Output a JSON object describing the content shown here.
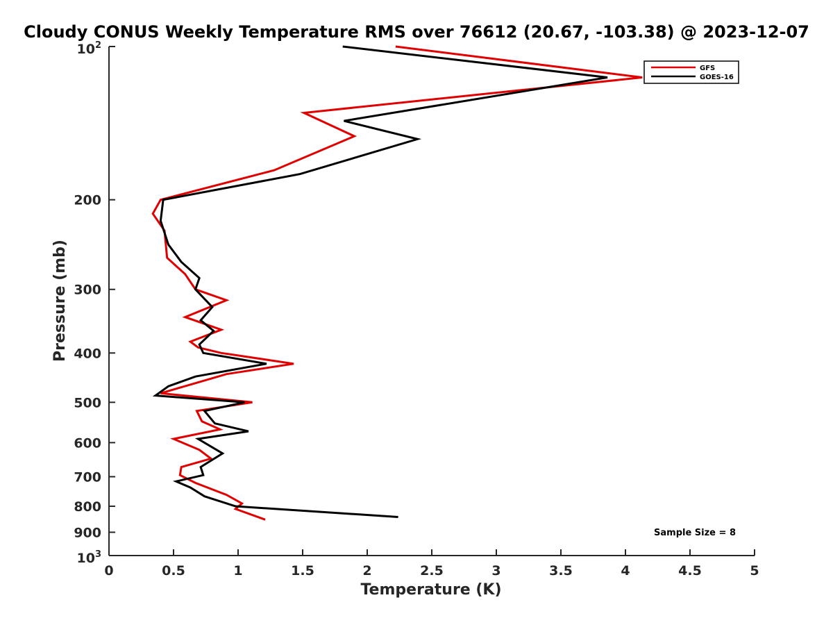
{
  "chart_data": {
    "type": "line",
    "title": "Cloudy CONUS Weekly Temperature RMS over 76612 (20.67, -103.38) @ 2023-12-07",
    "xlabel": "Temperature (K)",
    "ylabel": "Pressure (mb)",
    "xlim": [
      0,
      5
    ],
    "ylim": [
      100,
      1000
    ],
    "yscale": "log",
    "y_reversed": true,
    "xticks": [
      0,
      0.5,
      1,
      1.5,
      2,
      2.5,
      3,
      3.5,
      4,
      4.5,
      5
    ],
    "xtick_labels": [
      "0",
      "0.5",
      "1",
      "1.5",
      "2",
      "2.5",
      "3",
      "3.5",
      "4",
      "4.5",
      "5"
    ],
    "yticks": [
      200,
      300,
      400,
      500,
      600,
      700,
      800,
      900
    ],
    "ytick_labels": [
      "200",
      "300",
      "400",
      "500",
      "600",
      "700",
      "800",
      "900"
    ],
    "ylim_labels": {
      "top_base": "10",
      "top_exp": "2",
      "bottom_base": "10",
      "bottom_exp": "3"
    },
    "legend": {
      "position": "top-right",
      "entries": [
        "GFS",
        "GOES-16"
      ]
    },
    "annotation": "Sample Size = 8",
    "series": [
      {
        "name": "GFS",
        "color": "#e00000",
        "points": [
          [
            2.22,
            100
          ],
          [
            4.13,
            115
          ],
          [
            1.51,
            135
          ],
          [
            1.9,
            150
          ],
          [
            1.28,
            175
          ],
          [
            0.4,
            200
          ],
          [
            0.34,
            213
          ],
          [
            0.43,
            230
          ],
          [
            0.45,
            260
          ],
          [
            0.59,
            280
          ],
          [
            0.67,
            300
          ],
          [
            0.91,
            315
          ],
          [
            0.59,
            340
          ],
          [
            0.87,
            360
          ],
          [
            0.63,
            380
          ],
          [
            0.69,
            390
          ],
          [
            0.87,
            400
          ],
          [
            1.43,
            420
          ],
          [
            0.91,
            440
          ],
          [
            0.65,
            460
          ],
          [
            0.4,
            480
          ],
          [
            1.11,
            500
          ],
          [
            0.68,
            520
          ],
          [
            0.72,
            545
          ],
          [
            0.86,
            565
          ],
          [
            0.5,
            590
          ],
          [
            0.7,
            620
          ],
          [
            0.79,
            645
          ],
          [
            0.56,
            670
          ],
          [
            0.55,
            695
          ],
          [
            0.67,
            720
          ],
          [
            0.91,
            760
          ],
          [
            1.03,
            790
          ],
          [
            0.98,
            810
          ],
          [
            1.21,
            850
          ]
        ]
      },
      {
        "name": "GOES-16",
        "color": "#000000",
        "points": [
          [
            1.81,
            100
          ],
          [
            3.86,
            115
          ],
          [
            1.82,
            140
          ],
          [
            2.39,
            152
          ],
          [
            1.48,
            178
          ],
          [
            0.42,
            200
          ],
          [
            0.4,
            220
          ],
          [
            0.46,
            245
          ],
          [
            0.56,
            265
          ],
          [
            0.7,
            285
          ],
          [
            0.67,
            300
          ],
          [
            0.8,
            325
          ],
          [
            0.71,
            345
          ],
          [
            0.81,
            362
          ],
          [
            0.7,
            385
          ],
          [
            0.73,
            400
          ],
          [
            1.22,
            420
          ],
          [
            0.67,
            445
          ],
          [
            0.46,
            465
          ],
          [
            0.36,
            485
          ],
          [
            1.05,
            500
          ],
          [
            0.74,
            520
          ],
          [
            0.82,
            550
          ],
          [
            1.08,
            570
          ],
          [
            0.69,
            590
          ],
          [
            0.88,
            630
          ],
          [
            0.71,
            670
          ],
          [
            0.73,
            695
          ],
          [
            0.52,
            715
          ],
          [
            0.63,
            735
          ],
          [
            0.74,
            765
          ],
          [
            0.98,
            800
          ],
          [
            2.24,
            840
          ]
        ]
      }
    ]
  }
}
